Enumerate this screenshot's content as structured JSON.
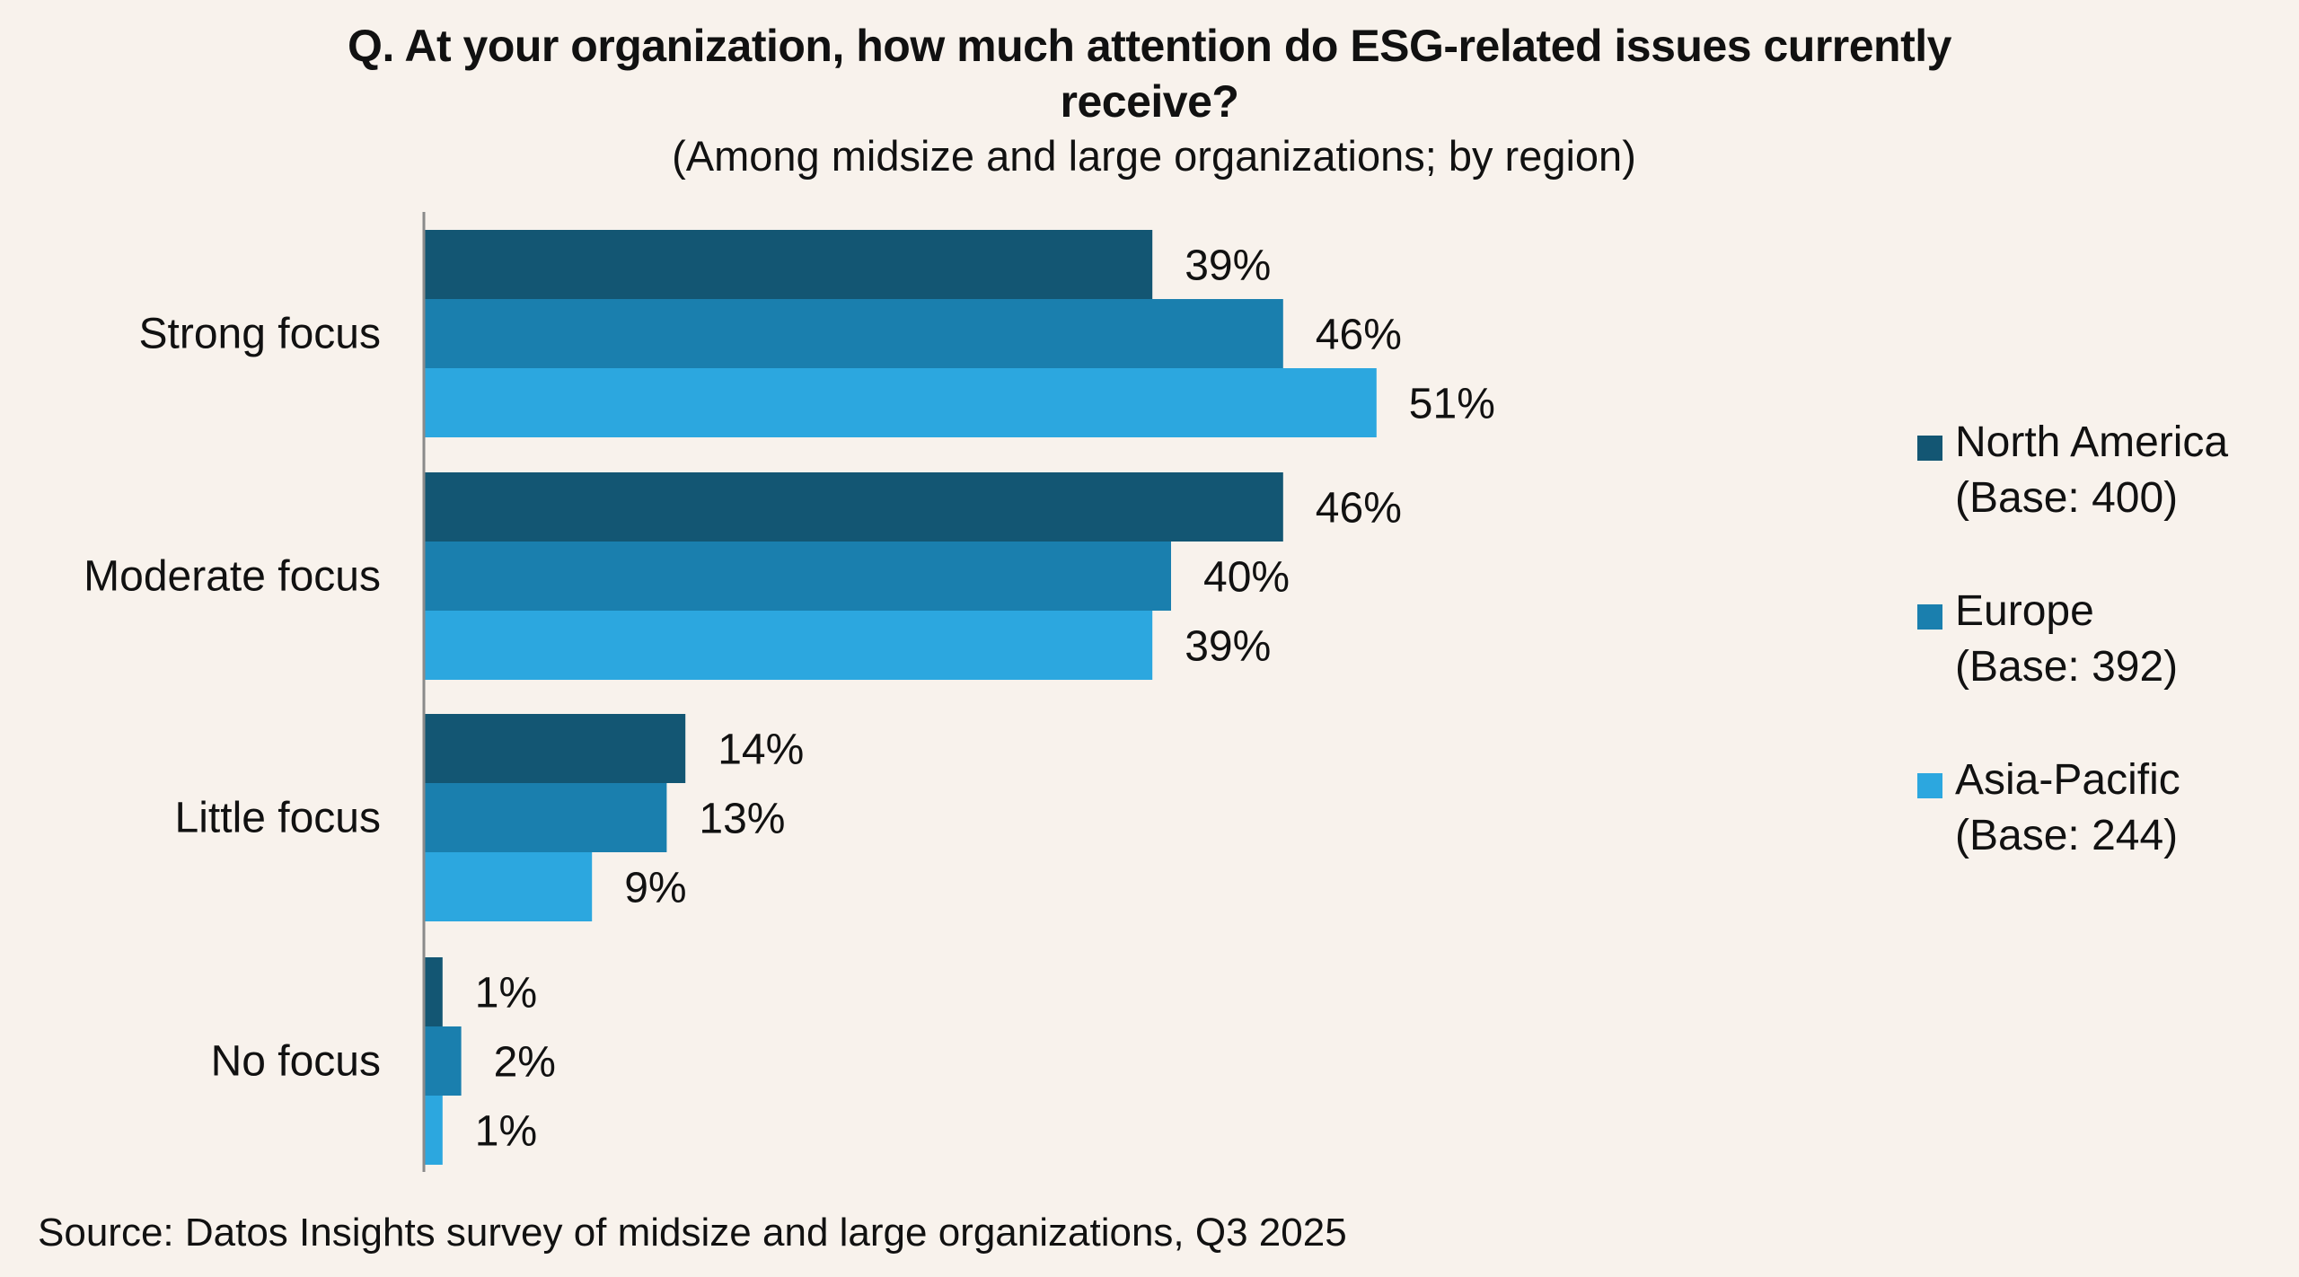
{
  "chart_data": {
    "type": "bar",
    "orientation": "horizontal",
    "title": "Q. At your organization, how much attention do ESG-related issues currently receive?",
    "title_lines": [
      "Q. At your organization, how much attention do ESG-related issues currently",
      "receive?"
    ],
    "subtitle": "(Among midsize and large organizations; by region)",
    "xlabel": "",
    "ylabel": "",
    "xlim": [
      0,
      100
    ],
    "grid": false,
    "categories": [
      "Strong focus",
      "Moderate focus",
      "Little focus",
      "No focus"
    ],
    "series": [
      {
        "name": "North America",
        "base_label": "(Base: 400)",
        "color": "#135673",
        "values": [
          39,
          46,
          14,
          1
        ]
      },
      {
        "name": "Europe",
        "base_label": "(Base: 392)",
        "color": "#1a7fae",
        "values": [
          46,
          40,
          13,
          2
        ]
      },
      {
        "name": "Asia-Pacific",
        "base_label": "(Base: 244)",
        "color": "#2ca7df",
        "values": [
          51,
          39,
          9,
          1
        ]
      }
    ],
    "value_suffix": "%",
    "legend_position": "right",
    "source": "Source: Datos Insights survey of midsize and large organizations, Q3 2025"
  },
  "colors": {
    "background": "#f8f2ec",
    "axis": "#8a8a8a",
    "text": "#111111"
  }
}
